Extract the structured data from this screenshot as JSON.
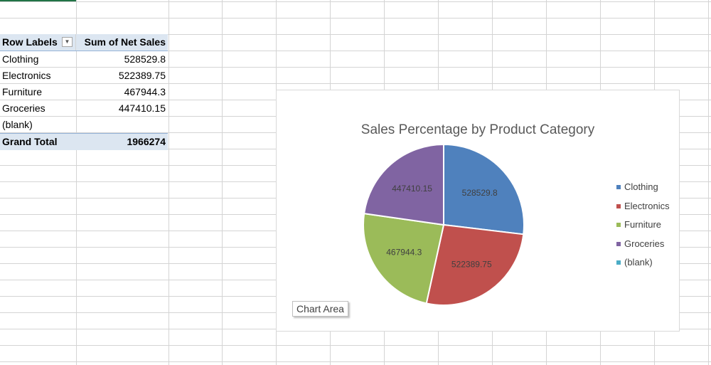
{
  "pivot": {
    "header": {
      "row_labels": "Row Labels",
      "sum_label": "Sum of Net Sales",
      "filter_icon": "dropdown-arrow"
    },
    "rows": [
      {
        "label": "Clothing",
        "value": "528529.8"
      },
      {
        "label": "Electronics",
        "value": "522389.75"
      },
      {
        "label": "Furniture",
        "value": "467944.3"
      },
      {
        "label": "Groceries",
        "value": "447410.15"
      },
      {
        "label": "(blank)",
        "value": ""
      }
    ],
    "total": {
      "label": "Grand Total",
      "value": "1966274"
    }
  },
  "chart": {
    "title": "Sales Percentage by Product Category",
    "tooltip": "Chart Area"
  },
  "chart_data": {
    "type": "pie",
    "title": "Sales Percentage by Product Category",
    "categories": [
      "Clothing",
      "Electronics",
      "Furniture",
      "Groceries",
      "(blank)"
    ],
    "values": [
      528529.8,
      522389.75,
      467944.3,
      447410.15,
      0
    ],
    "data_labels": [
      "528529.8",
      "522389.75",
      "467944.3",
      "447410.15",
      ""
    ],
    "colors": [
      "#4f81bd",
      "#c0504d",
      "#9bbb59",
      "#8064a2",
      "#4bacc6"
    ],
    "legend_position": "right"
  },
  "colors": {
    "header_fill": "#dce6f1",
    "gridline": "#d4d4d4",
    "selection": "#217346"
  }
}
